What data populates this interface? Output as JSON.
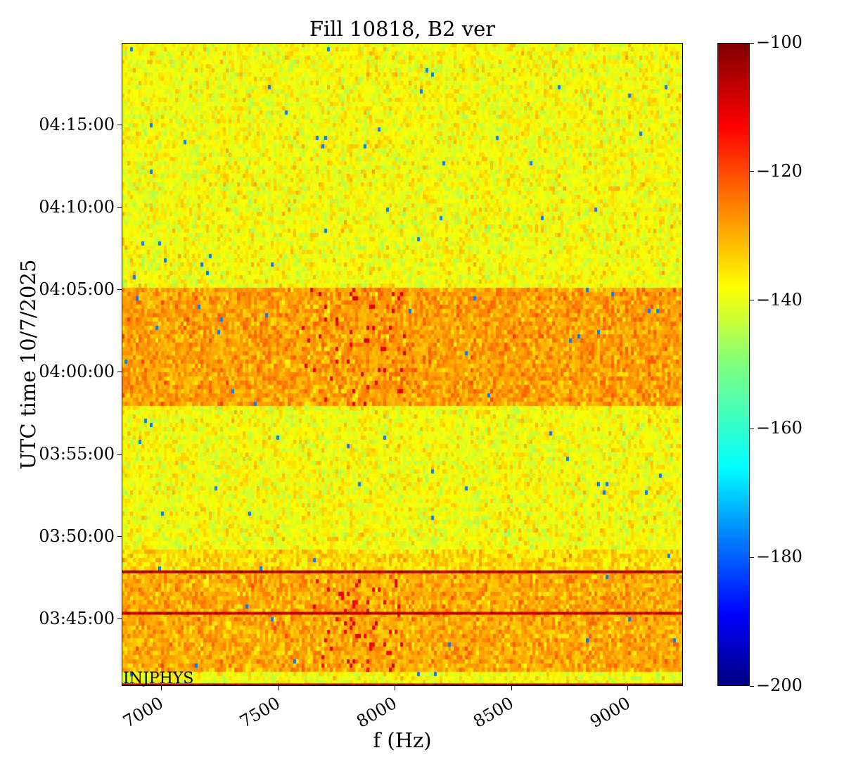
{
  "chart_data": {
    "type": "heatmap",
    "title": "Fill 10818, B2 ver",
    "xlabel": "f (Hz)",
    "ylabel": "UTC time 10/7/2025",
    "xlim": [
      6831,
      9235
    ],
    "xticks": [
      7000,
      7500,
      8000,
      8500,
      9000
    ],
    "xtick_labels": [
      "7000",
      "7500",
      "8000",
      "8500",
      "9000"
    ],
    "ylim_minutes": [
      220.93,
      260.0
    ],
    "yticks_minutes": [
      225,
      230,
      235,
      240,
      245,
      250,
      255
    ],
    "ytick_labels": [
      "03:45:00",
      "03:50:00",
      "03:55:00",
      "04:00:00",
      "04:05:00",
      "04:10:00",
      "04:15:00"
    ],
    "colorbar": {
      "range": [
        -200,
        -100
      ],
      "ticks": [
        -100,
        -120,
        -140,
        -160,
        -180,
        -200
      ],
      "tick_labels": [
        "−100",
        "−120",
        "−140",
        "−160",
        "−180",
        "−200"
      ],
      "colormap": "jet"
    },
    "background_level_db": -138,
    "bands": [
      {
        "t_start_min": 237.9,
        "t_end_min": 245.25,
        "level_db": -128
      },
      {
        "t_start_min": 221.8,
        "t_end_min": 227.9,
        "level_db": -129
      },
      {
        "t_start_min": 227.9,
        "t_end_min": 229.3,
        "level_db": -134
      }
    ],
    "lines": [
      {
        "t_min": 227.87,
        "level_db": -105
      },
      {
        "t_min": 225.35,
        "level_db": -106
      },
      {
        "t_min": 221.0,
        "level_db": -104
      }
    ],
    "bursts": [
      {
        "f_range": [
          7600,
          8050
        ],
        "t_range": [
          237.9,
          245.0
        ],
        "level_db": -110
      },
      {
        "f_range": [
          7650,
          8050
        ],
        "t_range": [
          221.8,
          227.5
        ],
        "level_db": -111
      }
    ],
    "annotation": "INJPHYS"
  }
}
